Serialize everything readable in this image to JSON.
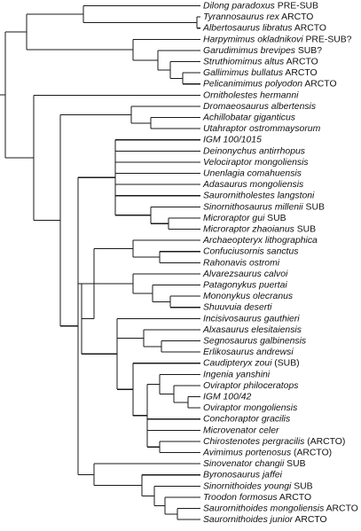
{
  "tree": {
    "taxa": [
      {
        "name": "Dilong paradoxus",
        "tag": "PRE-SUB"
      },
      {
        "name": "Tyrannosaurus rex",
        "tag": "ARCTO"
      },
      {
        "name": "Albertosaurus libratus",
        "tag": "ARCTO"
      },
      {
        "name": "Harpymimus okladnikovi",
        "tag": "PRE-SUB?"
      },
      {
        "name": "Garudimimus brevipes",
        "tag": "SUB?"
      },
      {
        "name": "Struthiomimus altus",
        "tag": "ARCTO"
      },
      {
        "name": "Gallimimus bullatus",
        "tag": "ARCTO"
      },
      {
        "name": "Pelicanimimus polyodon",
        "tag": "ARCTO"
      },
      {
        "name": "Ornitholestes hermanni",
        "tag": ""
      },
      {
        "name": "Dromaeosaurus albertensis",
        "tag": ""
      },
      {
        "name": "Achillobatar giganticus",
        "tag": ""
      },
      {
        "name": "Utahraptor ostrommaysorum",
        "tag": ""
      },
      {
        "name": "IGM 100/1015",
        "tag": ""
      },
      {
        "name": "Deinonychus antirrhopus",
        "tag": ""
      },
      {
        "name": "Velociraptor mongoliensis",
        "tag": ""
      },
      {
        "name": "Unenlagia comahuensis",
        "tag": ""
      },
      {
        "name": "Adasaurus mongoliensis",
        "tag": ""
      },
      {
        "name": "Saurornitholestes langstoni",
        "tag": ""
      },
      {
        "name": "Sinornithosaurus millenii",
        "tag": "SUB"
      },
      {
        "name": "Microraptor gui",
        "tag": "SUB"
      },
      {
        "name": "Microraptor zhaoianus",
        "tag": "SUB"
      },
      {
        "name": "Archaeopteryx lithographica",
        "tag": ""
      },
      {
        "name": "Confuciusornis sanctus",
        "tag": ""
      },
      {
        "name": "Rahonavis ostromi",
        "tag": ""
      },
      {
        "name": "Alvarezsaurus calvoi",
        "tag": ""
      },
      {
        "name": "Patagonykus puertai",
        "tag": ""
      },
      {
        "name": "Mononykus olecranus",
        "tag": ""
      },
      {
        "name": "Shuuvuia deserti",
        "tag": ""
      },
      {
        "name": "Incisivosaurus gauthieri",
        "tag": ""
      },
      {
        "name": "Alxasaurus elesitaiensis",
        "tag": ""
      },
      {
        "name": "Segnosaurus galbinensis",
        "tag": ""
      },
      {
        "name": "Erlikosaurus andrewsi",
        "tag": ""
      },
      {
        "name": "Caudipteryx zoui",
        "tag": "(SUB)"
      },
      {
        "name": "Ingenia yanshini",
        "tag": ""
      },
      {
        "name": "Oviraptor philoceratops",
        "tag": ""
      },
      {
        "name": "IGM 100/42",
        "tag": ""
      },
      {
        "name": "Oviraptor mongoliensis",
        "tag": ""
      },
      {
        "name": "Conchoraptor gracilis",
        "tag": ""
      },
      {
        "name": "Microvenator celer",
        "tag": ""
      },
      {
        "name": "Chirostenotes pergracilis",
        "tag": "(ARCTO)"
      },
      {
        "name": "Avimimus portenosus",
        "tag": "(ARCTO)"
      },
      {
        "name": "Sinovenator changii",
        "tag": "SUB"
      },
      {
        "name": "Byronosaurus jaffei",
        "tag": ""
      },
      {
        "name": "Sinornithoides youngi",
        "tag": "SUB"
      },
      {
        "name": "Troodon formosus",
        "tag": "ARCTO"
      },
      {
        "name": "Saurornithoides mongoliensis",
        "tag": "ARCTO"
      },
      {
        "name": "Saurornithoides junior",
        "tag": "ARCTO"
      }
    ]
  }
}
